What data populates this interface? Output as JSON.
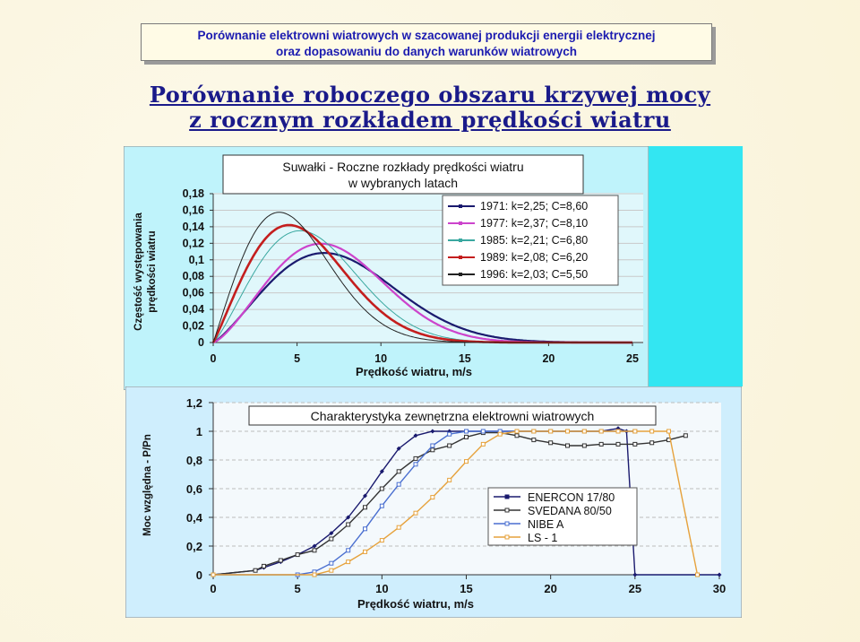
{
  "banner": {
    "line1": "Porównanie elektrowni wiatrowych w szacowanej produkcji energii elektrycznej",
    "line2": "oraz dopasowaniu do danych warunków wiatrowych"
  },
  "heading": {
    "line1": "Porównanie roboczego obszaru krzywej mocy",
    "line2": "z rocznym rozkładem prędkości wiatru"
  },
  "chart_data": [
    {
      "type": "line",
      "title_line1": "Suwałki  -  Roczne rozkłady prędkości wiatru",
      "title_line2": "w wybranych latach",
      "xlabel": "Prędkość wiatru, m/s",
      "ylabel_line1": "Częstość występowania",
      "ylabel_line2": "prędkości wiatru",
      "xlim": [
        0,
        25
      ],
      "ylim": [
        0,
        0.18
      ],
      "x_ticks": [
        "0",
        "5",
        "10",
        "15",
        "20",
        "25"
      ],
      "y_ticks": [
        "0",
        "0,02",
        "0,04",
        "0,06",
        "0,08",
        "0,1",
        "0,12",
        "0,14",
        "0,16",
        "0,18"
      ],
      "legend_position": "top-right",
      "series": [
        {
          "name": "1971:  k=2,25;  C=8,60",
          "k": 2.25,
          "C": 8.6,
          "color": "#1a1a6e"
        },
        {
          "name": "1977:  k=2,37;  C=8,10",
          "k": 2.37,
          "C": 8.1,
          "color": "#cc44cc"
        },
        {
          "name": "1985:  k=2,21;  C=6,80",
          "k": 2.21,
          "C": 6.8,
          "color": "#3aa8a0"
        },
        {
          "name": "1989:  k=2,08;  C=6,20",
          "k": 2.08,
          "C": 6.2,
          "color": "#c41e1e"
        },
        {
          "name": "1996:  k=2,03;  C=5,50",
          "k": 2.03,
          "C": 5.5,
          "color": "#222222"
        }
      ]
    },
    {
      "type": "line",
      "title": "Charakterystyka zewnętrzna elektrowni wiatrowych",
      "xlabel": "Prędkość wiatru, m/s",
      "ylabel": "Moc względna  -  P/Pn",
      "xlim": [
        0,
        30
      ],
      "ylim": [
        0,
        1.2
      ],
      "x_ticks": [
        "0",
        "5",
        "10",
        "15",
        "20",
        "25",
        "30"
      ],
      "y_ticks": [
        "0",
        "0,2",
        "0,4",
        "0,6",
        "0,8",
        "1",
        "1,2"
      ],
      "legend_position": "bottom-right",
      "series": [
        {
          "name": "ENERCON 17/80",
          "color": "#1a1a6e",
          "marker": "diamond",
          "x": [
            0,
            2.5,
            3,
            4,
            5,
            6,
            7,
            8,
            9,
            10,
            11,
            12,
            13,
            14,
            15,
            16,
            17,
            18,
            19,
            20,
            21,
            22,
            23,
            24,
            24.5,
            25,
            30
          ],
          "y": [
            0,
            0.03,
            0.05,
            0.09,
            0.14,
            0.2,
            0.29,
            0.4,
            0.55,
            0.72,
            0.88,
            0.97,
            1.0,
            1.0,
            1.0,
            1.0,
            1.0,
            1.0,
            1.0,
            1.0,
            1.0,
            1.0,
            1.0,
            1.02,
            1.0,
            0,
            0
          ]
        },
        {
          "name": "SVEDANA 80/50",
          "color": "#333333",
          "marker": "square",
          "x": [
            0,
            2.5,
            3,
            4,
            5,
            6,
            7,
            8,
            9,
            10,
            11,
            12,
            13,
            14,
            15,
            16,
            17,
            18,
            19,
            20,
            21,
            22,
            23,
            24,
            25,
            26,
            27,
            28
          ],
          "y": [
            0,
            0.03,
            0.06,
            0.1,
            0.14,
            0.17,
            0.25,
            0.35,
            0.47,
            0.6,
            0.72,
            0.81,
            0.87,
            0.9,
            0.96,
            0.99,
            0.99,
            0.97,
            0.94,
            0.92,
            0.9,
            0.9,
            0.91,
            0.91,
            0.91,
            0.92,
            0.94,
            0.97
          ]
        },
        {
          "name": "NIBE A",
          "color": "#4a6fd0",
          "marker": "square",
          "x": [
            0,
            5,
            6,
            7,
            8,
            9,
            10,
            11,
            12,
            13,
            14,
            15,
            16,
            17,
            18,
            19,
            20,
            21,
            22,
            23,
            24,
            25
          ],
          "y": [
            0,
            0,
            0.02,
            0.08,
            0.17,
            0.32,
            0.48,
            0.63,
            0.77,
            0.9,
            0.98,
            1.0,
            1.0,
            1.0,
            1.0,
            1.0,
            1.0,
            1.0,
            1.0,
            1.0,
            1.0,
            1.0
          ]
        },
        {
          "name": "LS - 1",
          "color": "#e6a23c",
          "marker": "square",
          "x": [
            0,
            6,
            7,
            8,
            9,
            10,
            11,
            12,
            13,
            14,
            15,
            16,
            17,
            18,
            19,
            20,
            21,
            22,
            23,
            24,
            25,
            26,
            27,
            28.7
          ],
          "y": [
            0,
            0,
            0.03,
            0.09,
            0.16,
            0.24,
            0.33,
            0.43,
            0.54,
            0.66,
            0.79,
            0.91,
            0.98,
            1.0,
            1.0,
            1.0,
            1.0,
            1.0,
            1.0,
            1.0,
            1.0,
            1.0,
            1.0,
            0
          ]
        }
      ]
    }
  ],
  "colors": {
    "banner_text": "#1b1bb0",
    "heading_text": "#1a1a8a",
    "top_panel_bg": "#bff3fb",
    "side_strip": "#33e6f2",
    "bottom_panel_bg": "#cfeefd"
  }
}
